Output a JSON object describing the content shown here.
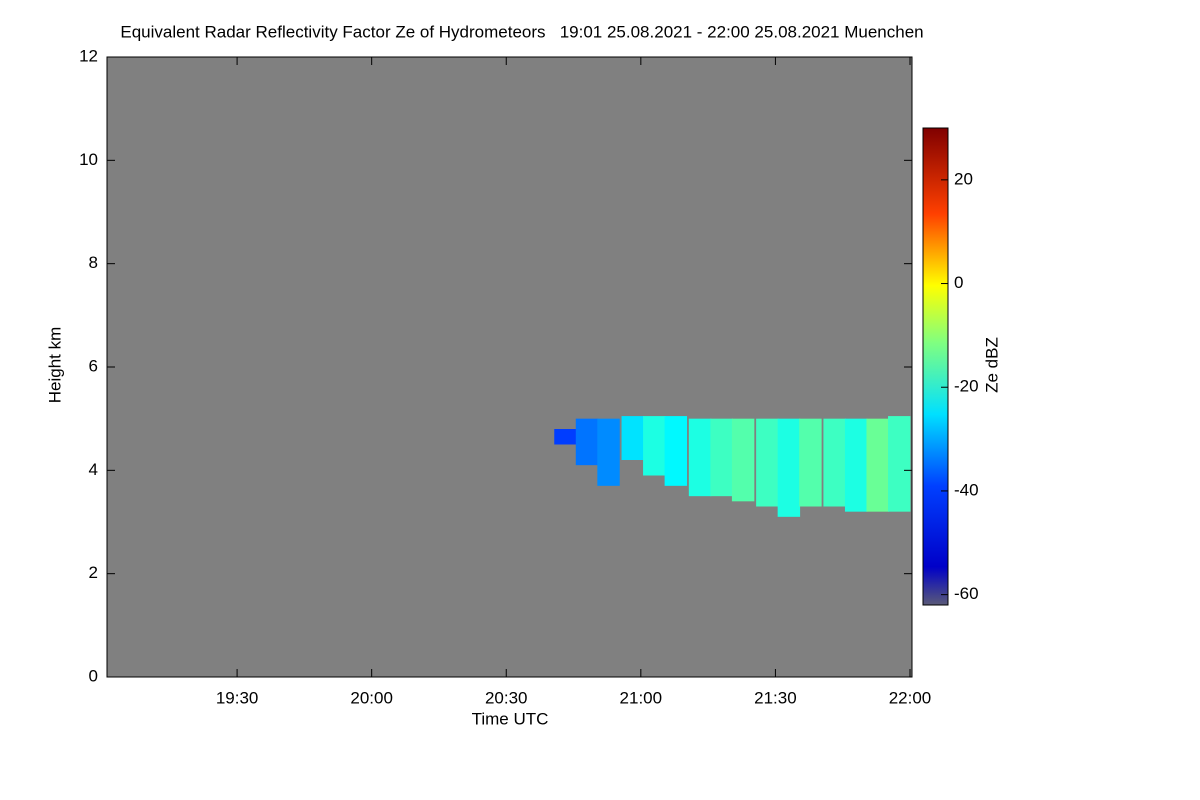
{
  "chart_data": {
    "type": "heatmap",
    "title": "Equivalent Radar Reflectivity Factor Ze of Hydrometeors   19:01 25.08.2021 - 22:00 25.08.2021 Muenchen",
    "x_label": "Time UTC",
    "y_label": "Height km",
    "colorbar_label": "Ze dBZ",
    "background": "#808080",
    "colormap": "jet",
    "xlim": [
      19.0167,
      22.0
    ],
    "xticks": [
      {
        "value": 19.5,
        "label": "19:30"
      },
      {
        "value": 20.0,
        "label": "20:00"
      },
      {
        "value": 20.5,
        "label": "20:30"
      },
      {
        "value": 21.0,
        "label": "21:00"
      },
      {
        "value": 21.5,
        "label": "21:30"
      },
      {
        "value": 22.0,
        "label": "22:00"
      }
    ],
    "ylim": [
      0,
      12
    ],
    "yticks": [
      0,
      2,
      4,
      6,
      8,
      10,
      12
    ],
    "clim": [
      -62,
      30
    ],
    "cticks": [
      -60,
      -40,
      -20,
      0,
      20
    ],
    "columns": [
      {
        "x": 20.72,
        "base": 4.5,
        "top": 4.8,
        "value": -45
      },
      {
        "x": 20.8,
        "base": 4.1,
        "top": 5.0,
        "value": -40
      },
      {
        "x": 20.88,
        "base": 3.7,
        "top": 5.0,
        "value": -38
      },
      {
        "x": 20.97,
        "base": 4.2,
        "top": 5.05,
        "value": -30
      },
      {
        "x": 21.05,
        "base": 3.9,
        "top": 5.05,
        "value": -25
      },
      {
        "x": 21.13,
        "base": 3.7,
        "top": 5.05,
        "value": -28
      },
      {
        "x": 21.22,
        "base": 3.5,
        "top": 5.0,
        "value": -25
      },
      {
        "x": 21.3,
        "base": 3.5,
        "top": 5.0,
        "value": -22
      },
      {
        "x": 21.38,
        "base": 3.4,
        "top": 5.0,
        "value": -20
      },
      {
        "x": 21.47,
        "base": 3.3,
        "top": 5.0,
        "value": -22
      },
      {
        "x": 21.55,
        "base": 3.1,
        "top": 5.0,
        "value": -25
      },
      {
        "x": 21.63,
        "base": 3.3,
        "top": 5.0,
        "value": -20
      },
      {
        "x": 21.72,
        "base": 3.3,
        "top": 5.0,
        "value": -22
      },
      {
        "x": 21.8,
        "base": 3.2,
        "top": 5.0,
        "value": -25
      },
      {
        "x": 21.88,
        "base": 3.2,
        "top": 5.0,
        "value": -18
      },
      {
        "x": 21.96,
        "base": 3.2,
        "top": 5.05,
        "value": -22
      }
    ]
  }
}
